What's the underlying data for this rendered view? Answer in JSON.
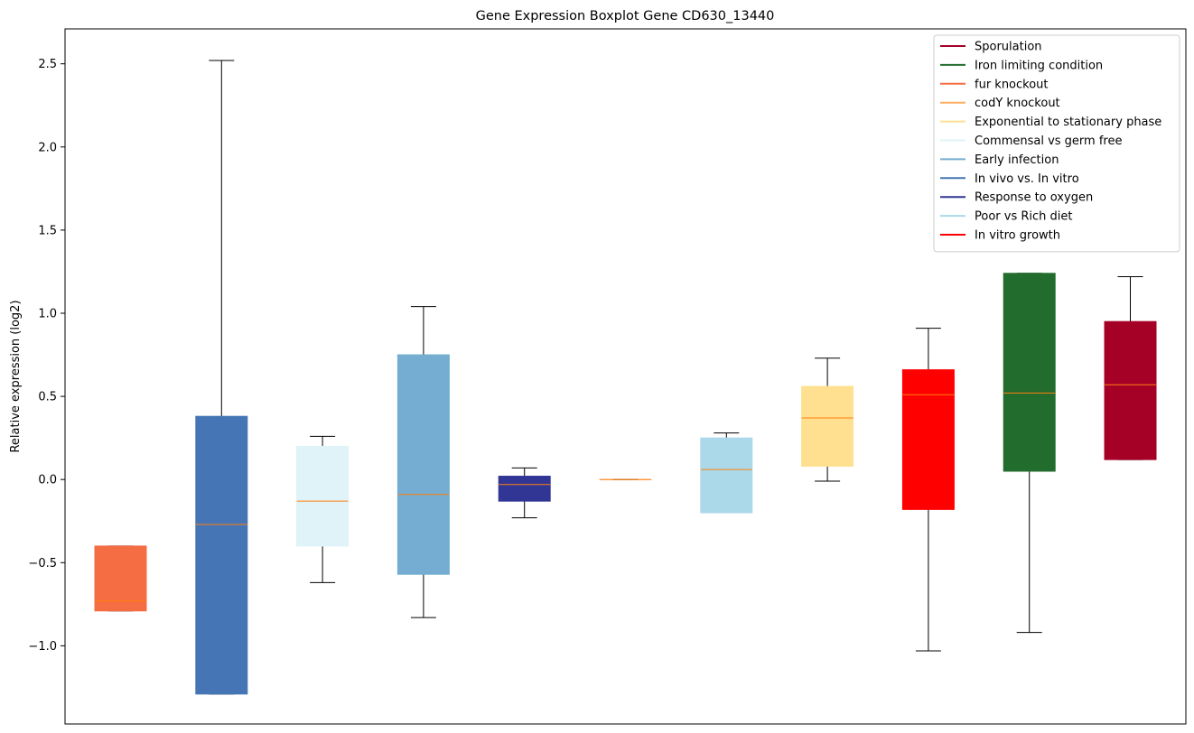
{
  "chart_data": {
    "type": "boxplot",
    "title": "Gene Expression Boxplot Gene CD630_13440",
    "xlabel": "",
    "ylabel": "Relative expression (log2)",
    "ylim": [
      -1.47,
      2.71
    ],
    "yticks": [
      -1.0,
      -0.5,
      0.0,
      0.5,
      1.0,
      1.5,
      2.0,
      2.5
    ],
    "ytick_labels": [
      "−1.0",
      "−0.5",
      "0.0",
      "0.5",
      "1.0",
      "1.5",
      "2.0",
      "2.5"
    ],
    "grid": false,
    "legend_position": "top-right",
    "median_color": "#ff7f0e",
    "boxes": [
      {
        "name": "fur knockout",
        "color": "#f46d43",
        "whisker_low": -0.79,
        "q1": -0.79,
        "median": -0.73,
        "q3": -0.4,
        "whisker_high": -0.4
      },
      {
        "name": "In vivo vs. In vitro",
        "color": "#4575b4",
        "whisker_low": -1.29,
        "q1": -1.29,
        "median": -0.27,
        "q3": 0.38,
        "whisker_high": 2.52
      },
      {
        "name": "Commensal vs germ free",
        "color": "#e0f3f8",
        "whisker_low": -0.62,
        "q1": -0.4,
        "median": -0.13,
        "q3": 0.2,
        "whisker_high": 0.26
      },
      {
        "name": "Early infection",
        "color": "#74add1",
        "whisker_low": -0.83,
        "q1": -0.57,
        "median": -0.09,
        "q3": 0.75,
        "whisker_high": 1.04
      },
      {
        "name": "Response to oxygen",
        "color": "#313695",
        "whisker_low": -0.23,
        "q1": -0.13,
        "median": -0.03,
        "q3": 0.02,
        "whisker_high": 0.07
      },
      {
        "name": "codY knockout",
        "color": "#fdae61",
        "whisker_low": 0.0,
        "q1": 0.0,
        "median": 0.0,
        "q3": 0.0,
        "whisker_high": 0.0
      },
      {
        "name": "Poor vs Rich diet",
        "color": "#abd9e9",
        "whisker_low": -0.2,
        "q1": -0.2,
        "median": 0.06,
        "q3": 0.25,
        "whisker_high": 0.28
      },
      {
        "name": "Exponential to stationary phase",
        "color": "#fee090",
        "whisker_low": -0.01,
        "q1": 0.08,
        "median": 0.37,
        "q3": 0.56,
        "whisker_high": 0.73
      },
      {
        "name": "In vitro growth",
        "color": "#ff0000",
        "whisker_low": -1.03,
        "q1": -0.18,
        "median": 0.51,
        "q3": 0.66,
        "whisker_high": 0.91
      },
      {
        "name": "Iron limiting condition",
        "color": "#226c2d",
        "whisker_low": -0.92,
        "q1": 0.05,
        "median": 0.52,
        "q3": 1.24,
        "whisker_high": 1.24
      },
      {
        "name": "Sporulation",
        "color": "#a50026",
        "whisker_low": 0.12,
        "q1": 0.12,
        "median": 0.57,
        "q3": 0.95,
        "whisker_high": 1.22
      }
    ],
    "legend": [
      {
        "label": "Sporulation",
        "color": "#a50026"
      },
      {
        "label": "Iron limiting condition",
        "color": "#226c2d"
      },
      {
        "label": "fur knockout",
        "color": "#f46d43"
      },
      {
        "label": "codY knockout",
        "color": "#fdae61"
      },
      {
        "label": "Exponential to stationary phase",
        "color": "#fee090"
      },
      {
        "label": "Commensal vs germ free",
        "color": "#e0f3f8"
      },
      {
        "label": "Early infection",
        "color": "#74add1"
      },
      {
        "label": "In vivo vs. In vitro",
        "color": "#4575b4"
      },
      {
        "label": "Response to oxygen",
        "color": "#313695"
      },
      {
        "label": "Poor vs Rich diet",
        "color": "#abd9e9"
      },
      {
        "label": "In vitro growth",
        "color": "#ff0000"
      }
    ]
  }
}
